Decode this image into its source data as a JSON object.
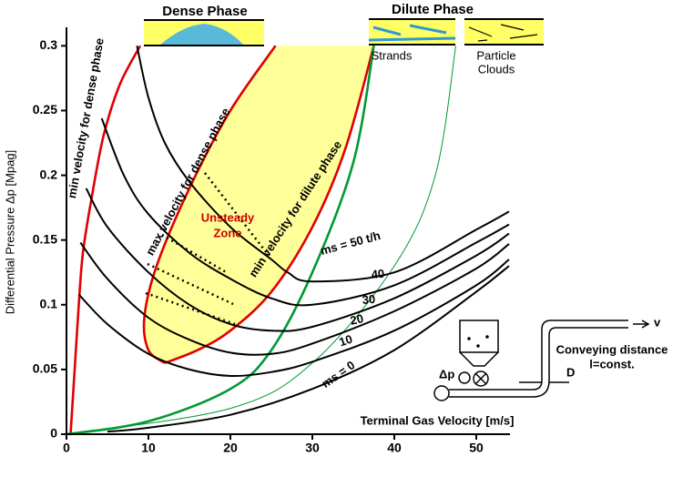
{
  "chart_data": {
    "type": "line",
    "y_label": "Differential Pressure Δp [Mpag]",
    "x_label": "Terminal Gas Velocity [m/s]",
    "xlim": [
      0,
      54
    ],
    "xticks": [
      0,
      10,
      20,
      30,
      40,
      50
    ],
    "ylim": [
      0,
      0.315
    ],
    "yticks": [
      0,
      0.05,
      0.1,
      0.15,
      0.2,
      0.25,
      0.3
    ],
    "zone_color": "#ffff99",
    "zone_label": [
      "Unsteady",
      "Zone"
    ],
    "series": [
      {
        "name": "min velocity for dense phase",
        "color": "#e00000",
        "x": [
          0.5,
          1,
          1.5,
          2,
          3,
          4.5,
          6.5,
          9
        ],
        "values": [
          0,
          0.05,
          0.1,
          0.14,
          0.18,
          0.23,
          0.27,
          0.3
        ]
      },
      {
        "name": "max velocity for dense phase",
        "color": "#e00000",
        "x": [
          25.5,
          20,
          15,
          11,
          9.5,
          10,
          12
        ],
        "values": [
          0.3,
          0.25,
          0.19,
          0.13,
          0.09,
          0.065,
          0.055
        ]
      },
      {
        "name": "min velocity for dilute phase",
        "color": "#e00000",
        "x": [
          12,
          16,
          20,
          25,
          30,
          34,
          37.5
        ],
        "values": [
          0.055,
          0.065,
          0.08,
          0.11,
          0.16,
          0.22,
          0.3
        ]
      },
      {
        "color": "#009933",
        "x": [
          0,
          10,
          20,
          25,
          30,
          35,
          37.5
        ],
        "values": [
          0,
          0.01,
          0.035,
          0.065,
          0.125,
          0.21,
          0.3
        ]
      },
      {
        "color": "#009933",
        "x": [
          0,
          20,
          30,
          40,
          45,
          47.5
        ],
        "values": [
          0,
          0.02,
          0.055,
          0.13,
          0.2,
          0.3
        ]
      },
      {
        "name": "ms = 50 t/h",
        "color": "#000000",
        "x": [
          8.6,
          10,
          12,
          15,
          20,
          25,
          27,
          30,
          40,
          50,
          54
        ],
        "values": [
          0.3,
          0.26,
          0.225,
          0.195,
          0.16,
          0.135,
          0.125,
          0.118,
          0.125,
          0.158,
          0.172
        ]
      },
      {
        "name": "40",
        "color": "#000000",
        "x": [
          4.3,
          7,
          10,
          15,
          20,
          25,
          30,
          40,
          50,
          54
        ],
        "values": [
          0.244,
          0.2,
          0.17,
          0.14,
          0.12,
          0.105,
          0.1,
          0.115,
          0.148,
          0.162
        ]
      },
      {
        "name": "30",
        "color": "#000000",
        "x": [
          2.4,
          5,
          10,
          15,
          20,
          25,
          30,
          40,
          50,
          54
        ],
        "values": [
          0.19,
          0.16,
          0.125,
          0.1,
          0.085,
          0.08,
          0.083,
          0.105,
          0.138,
          0.155
        ]
      },
      {
        "name": "20",
        "color": "#000000",
        "x": [
          1.7,
          5,
          10,
          15,
          20,
          25,
          30,
          40,
          50,
          54
        ],
        "values": [
          0.148,
          0.12,
          0.09,
          0.073,
          0.063,
          0.062,
          0.07,
          0.095,
          0.128,
          0.147
        ]
      },
      {
        "name": "10",
        "color": "#000000",
        "x": [
          1.5,
          5,
          10,
          15,
          20,
          25,
          30,
          40,
          50,
          54
        ],
        "values": [
          0.108,
          0.085,
          0.062,
          0.05,
          0.045,
          0.048,
          0.056,
          0.08,
          0.115,
          0.135
        ]
      },
      {
        "name": "ms = 0",
        "color": "#000000",
        "x": [
          5,
          10,
          20,
          30,
          40,
          50,
          54
        ],
        "values": [
          0.002,
          0.005,
          0.015,
          0.035,
          0.065,
          0.11,
          0.13
        ]
      }
    ]
  },
  "insets": {
    "dense": "Dense Phase",
    "dilute": "Dilute Phase",
    "strands": "Strands",
    "clouds": [
      "Particle",
      "Clouds"
    ]
  },
  "schematic": {
    "title": "Conveying distance",
    "subtitle": "l=const.",
    "diameter": "D",
    "pressure": "Δp",
    "velocity": "v"
  }
}
